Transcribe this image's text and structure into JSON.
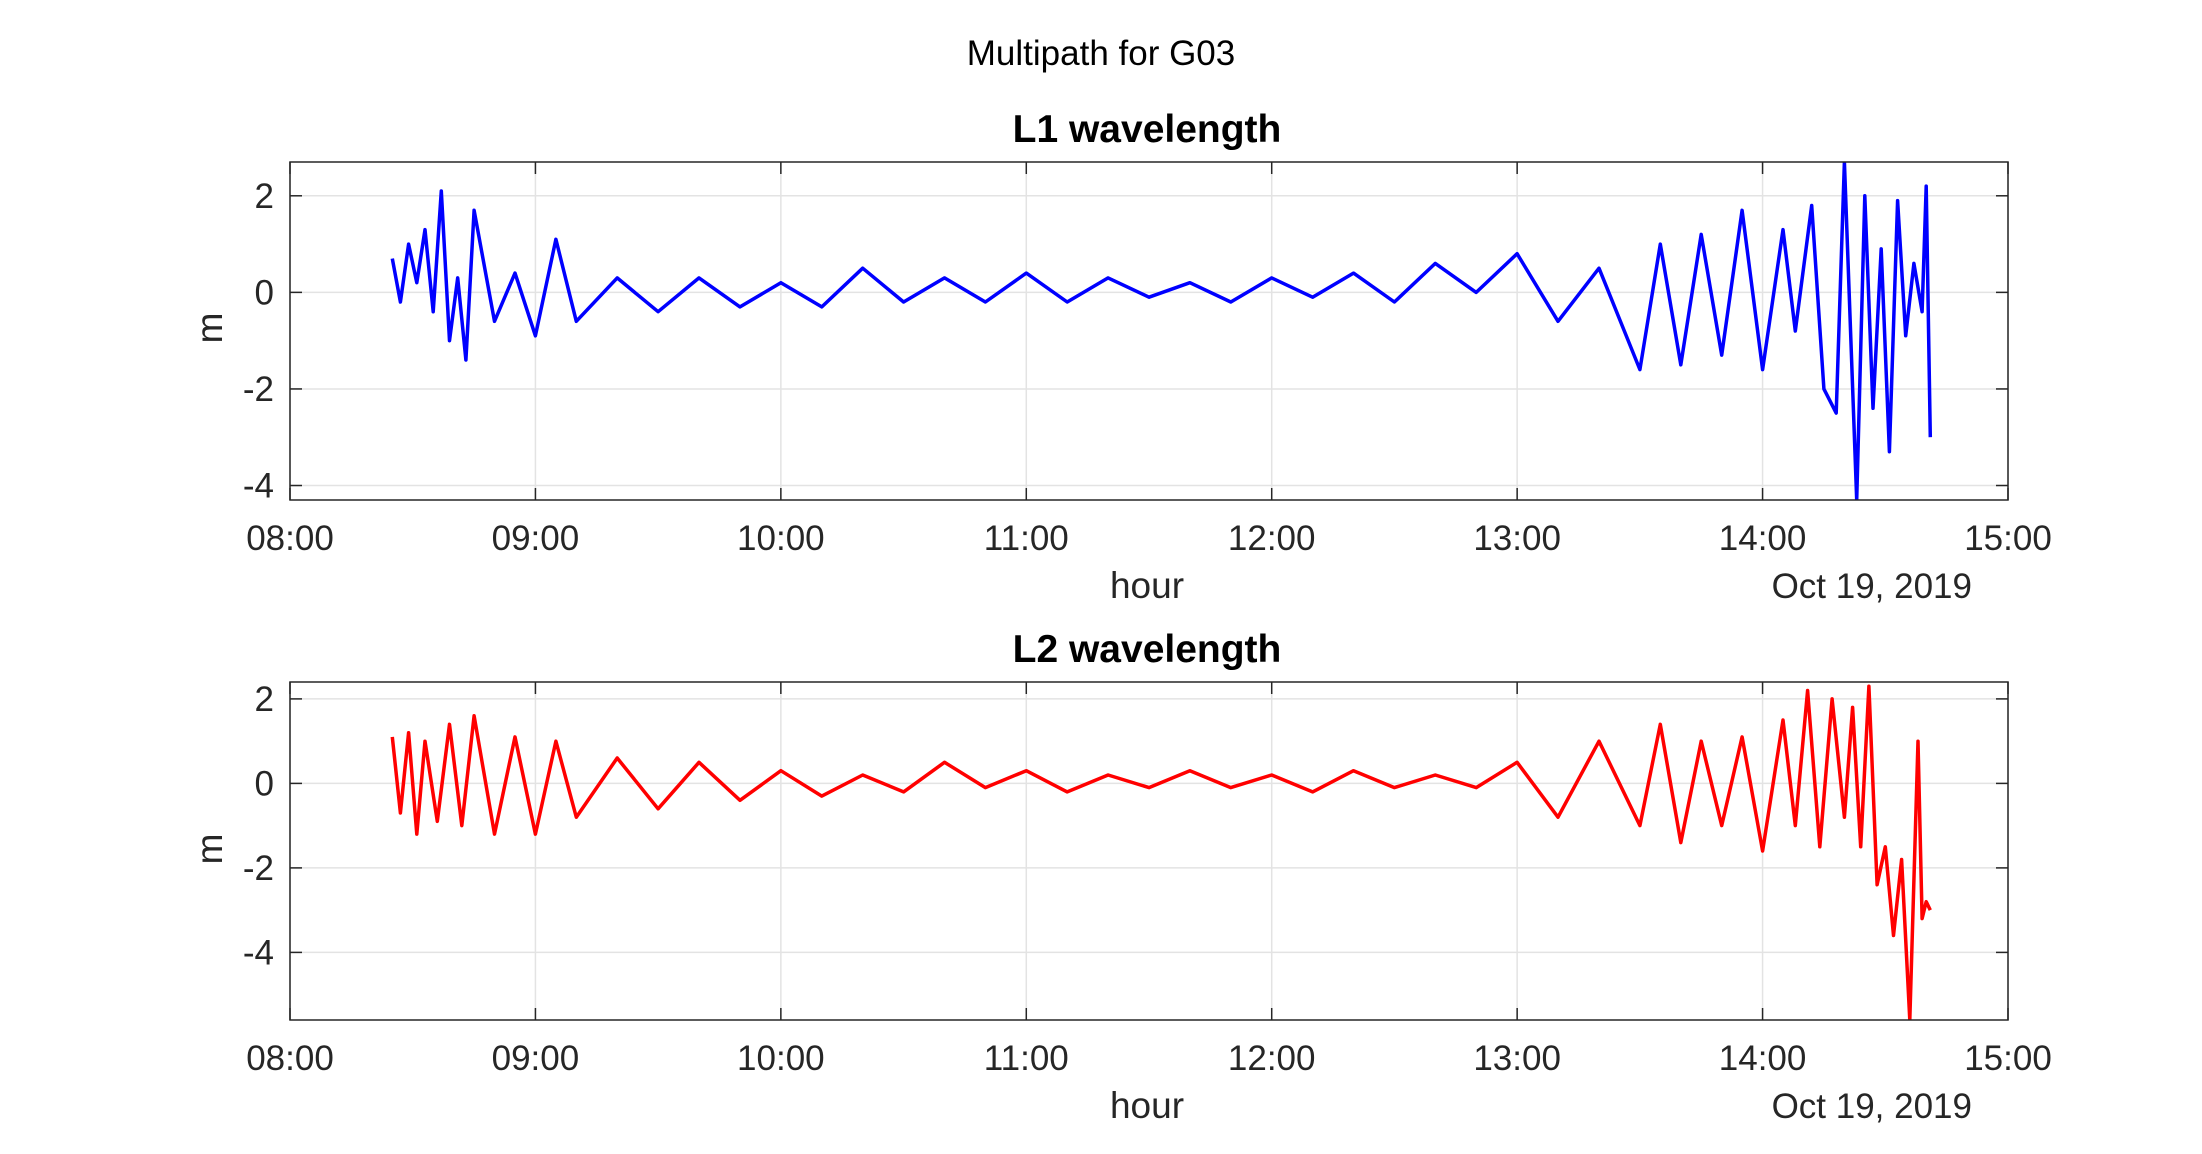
{
  "figure": {
    "suptitle": "Multipath for G03"
  },
  "chart_data": [
    {
      "type": "line",
      "title": "L1 wavelength",
      "xlabel": "hour",
      "ylabel": "m",
      "date_label": "Oct 19, 2019",
      "xlim": [
        "08:00",
        "15:00"
      ],
      "ylim": [
        -4.3,
        2.7
      ],
      "xticks": [
        "08:00",
        "09:00",
        "10:00",
        "11:00",
        "12:00",
        "13:00",
        "14:00",
        "15:00"
      ],
      "yticks": [
        -4,
        -2,
        0,
        2
      ],
      "ytick_labels": [
        "-4",
        "-2",
        "0",
        "2"
      ],
      "grid": true,
      "color": "#0000ff",
      "series": [
        {
          "x": [
            "08:25",
            "08:27",
            "08:29",
            "08:31",
            "08:33",
            "08:35",
            "08:37",
            "08:39",
            "08:41",
            "08:43",
            "08:45",
            "08:50",
            "08:55",
            "09:00",
            "09:05",
            "09:10",
            "09:20",
            "09:30",
            "09:40",
            "09:50",
            "10:00",
            "10:10",
            "10:20",
            "10:30",
            "10:40",
            "10:50",
            "11:00",
            "11:10",
            "11:20",
            "11:30",
            "11:40",
            "11:50",
            "12:00",
            "12:10",
            "12:20",
            "12:30",
            "12:40",
            "12:50",
            "13:00",
            "13:10",
            "13:20",
            "13:30",
            "13:35",
            "13:40",
            "13:45",
            "13:50",
            "13:55",
            "14:00",
            "14:05",
            "14:08",
            "14:12",
            "14:15",
            "14:18",
            "14:20",
            "14:23",
            "14:25",
            "14:27",
            "14:29",
            "14:31",
            "14:33",
            "14:35",
            "14:37",
            "14:39",
            "14:40",
            "14:41"
          ],
          "y": [
            0.7,
            -0.2,
            1.0,
            0.2,
            1.3,
            -0.4,
            2.1,
            -1.0,
            0.3,
            -1.4,
            1.7,
            -0.6,
            0.4,
            -0.9,
            1.1,
            -0.6,
            0.3,
            -0.4,
            0.3,
            -0.3,
            0.2,
            -0.3,
            0.5,
            -0.2,
            0.3,
            -0.2,
            0.4,
            -0.2,
            0.3,
            -0.1,
            0.2,
            -0.2,
            0.3,
            -0.1,
            0.4,
            -0.2,
            0.6,
            0.0,
            0.8,
            -0.6,
            0.5,
            -1.6,
            1.0,
            -1.5,
            1.2,
            -1.3,
            1.7,
            -1.6,
            1.3,
            -0.8,
            1.8,
            -2.0,
            -2.5,
            2.7,
            -4.3,
            2.0,
            -2.4,
            0.9,
            -3.3,
            1.9,
            -0.9,
            0.6,
            -0.4,
            2.2,
            -3.0
          ]
        }
      ]
    },
    {
      "type": "line",
      "title": "L2 wavelength",
      "xlabel": "hour",
      "ylabel": "m",
      "date_label": "Oct 19, 2019",
      "xlim": [
        "08:00",
        "15:00"
      ],
      "ylim": [
        -5.6,
        2.4
      ],
      "xticks": [
        "08:00",
        "09:00",
        "10:00",
        "11:00",
        "12:00",
        "13:00",
        "14:00",
        "15:00"
      ],
      "yticks": [
        -4,
        -2,
        0,
        2
      ],
      "ytick_labels": [
        "-4",
        "-2",
        "0",
        "2"
      ],
      "grid": true,
      "color": "#ff0000",
      "series": [
        {
          "x": [
            "08:25",
            "08:27",
            "08:29",
            "08:31",
            "08:33",
            "08:36",
            "08:39",
            "08:42",
            "08:45",
            "08:50",
            "08:55",
            "09:00",
            "09:05",
            "09:10",
            "09:20",
            "09:30",
            "09:40",
            "09:50",
            "10:00",
            "10:10",
            "10:20",
            "10:30",
            "10:40",
            "10:50",
            "11:00",
            "11:10",
            "11:20",
            "11:30",
            "11:40",
            "11:50",
            "12:00",
            "12:10",
            "12:20",
            "12:30",
            "12:40",
            "12:50",
            "13:00",
            "13:10",
            "13:20",
            "13:30",
            "13:35",
            "13:40",
            "13:45",
            "13:50",
            "13:55",
            "14:00",
            "14:05",
            "14:08",
            "14:11",
            "14:14",
            "14:17",
            "14:20",
            "14:22",
            "14:24",
            "14:26",
            "14:28",
            "14:30",
            "14:32",
            "14:34",
            "14:36",
            "14:38",
            "14:39",
            "14:40",
            "14:41"
          ],
          "y": [
            1.1,
            -0.7,
            1.2,
            -1.2,
            1.0,
            -0.9,
            1.4,
            -1.0,
            1.6,
            -1.2,
            1.1,
            -1.2,
            1.0,
            -0.8,
            0.6,
            -0.6,
            0.5,
            -0.4,
            0.3,
            -0.3,
            0.2,
            -0.2,
            0.5,
            -0.1,
            0.3,
            -0.2,
            0.2,
            -0.1,
            0.3,
            -0.1,
            0.2,
            -0.2,
            0.3,
            -0.1,
            0.2,
            -0.1,
            0.5,
            -0.8,
            1.0,
            -1.0,
            1.4,
            -1.4,
            1.0,
            -1.0,
            1.1,
            -1.6,
            1.5,
            -1.0,
            2.2,
            -1.5,
            2.0,
            -0.8,
            1.8,
            -1.5,
            2.3,
            -2.4,
            -1.5,
            -3.6,
            -1.8,
            -5.6,
            1.0,
            -3.2,
            -2.8,
            -3.0
          ]
        }
      ]
    }
  ]
}
